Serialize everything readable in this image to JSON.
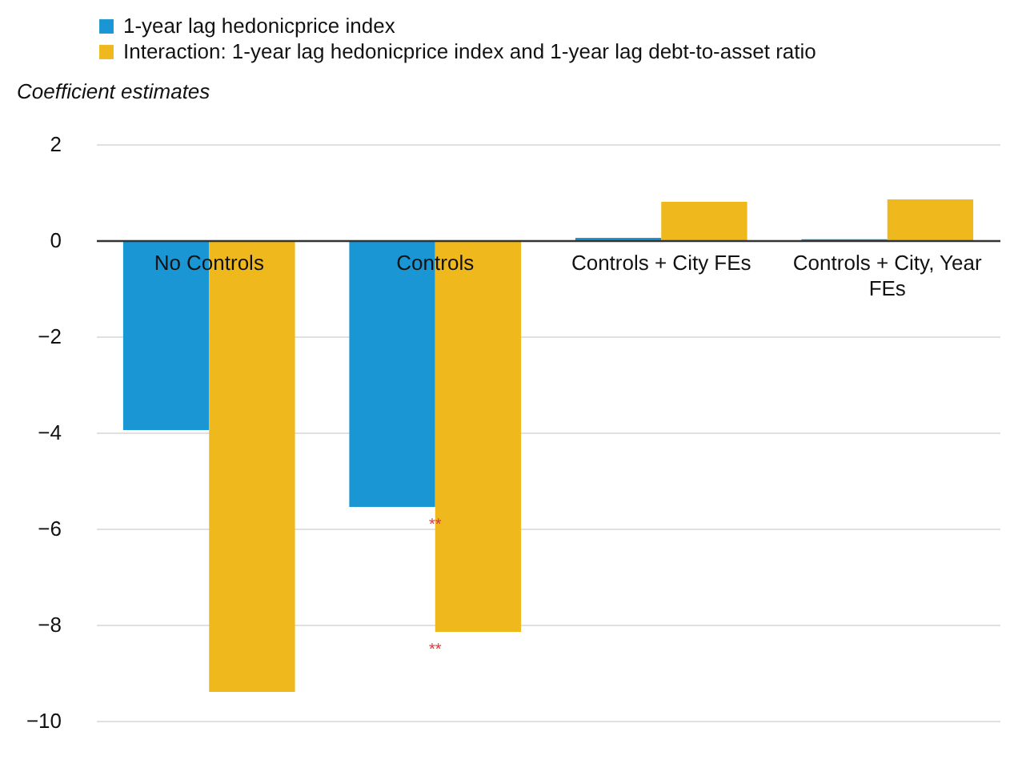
{
  "chart_data": {
    "type": "bar",
    "ylabel": "Coefficient estimates",
    "categories": [
      "No Controls",
      "Controls",
      "Controls + City FEs",
      "Controls + City, Year FEs"
    ],
    "series": [
      {
        "name": "1-year lag hedonicprice index",
        "color": "#1996d3",
        "values": [
          -3.95,
          -5.55,
          0.05,
          0.02
        ]
      },
      {
        "name": "Interaction: 1-year lag hedonicprice index and 1-year lag debt-to-asset ratio",
        "color": "#efb81c",
        "values": [
          -9.4,
          -8.15,
          0.8,
          0.85
        ]
      }
    ],
    "annotations": [
      {
        "text": "**",
        "x": "Controls",
        "y": -5.55
      },
      {
        "text": "**",
        "x": "Controls",
        "y": -8.15
      }
    ],
    "ylim": [
      -10,
      2
    ],
    "yticks": [
      -10,
      -8,
      -6,
      -4,
      -2,
      0,
      2
    ],
    "grid": "y",
    "legend": "top left"
  }
}
